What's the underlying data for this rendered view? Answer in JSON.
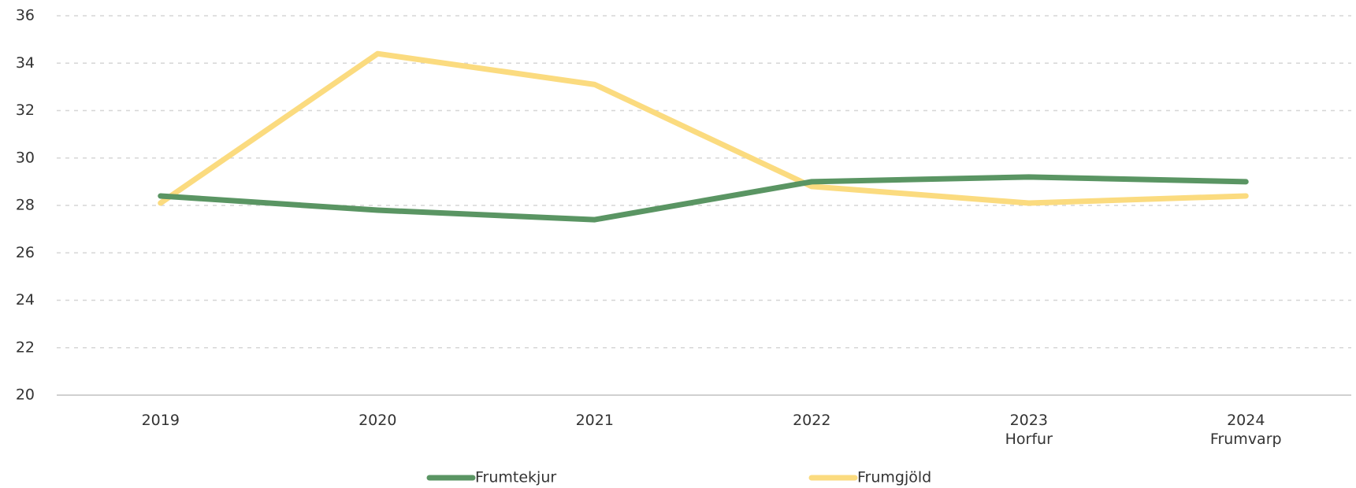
{
  "chart_data": {
    "type": "line",
    "categories": [
      "2019",
      "2020",
      "2021",
      "2022",
      "2023\nHorfur",
      "2024\nFrumvarp"
    ],
    "series": [
      {
        "name": "Frumtekjur",
        "color": "#5a9563",
        "values": [
          28.4,
          27.8,
          27.4,
          29.0,
          29.2,
          29.0
        ]
      },
      {
        "name": "Frumgjöld",
        "color": "#fbdb7f",
        "values": [
          28.1,
          34.4,
          33.1,
          28.8,
          28.1,
          28.4
        ]
      }
    ],
    "ylim": [
      20,
      36
    ],
    "yticks": [
      20,
      22,
      24,
      26,
      28,
      30,
      32,
      34,
      36
    ],
    "grid": true,
    "legend": "bottom"
  }
}
